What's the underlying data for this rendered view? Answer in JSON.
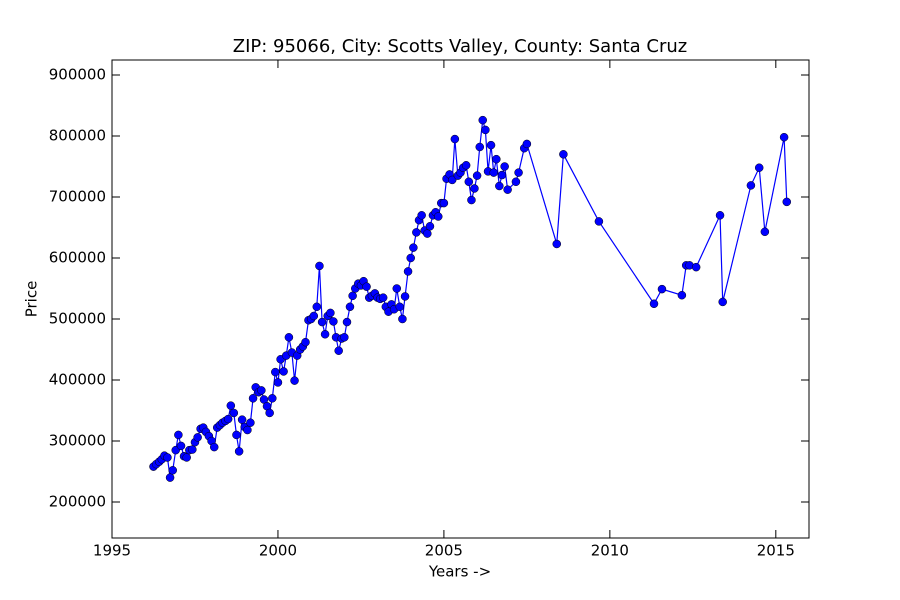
{
  "chart_data": {
    "type": "line",
    "title": "ZIP: 95066, City: Scotts Valley, County: Santa Cruz",
    "xlabel": "Years ->",
    "ylabel": "Price",
    "color": "#0000ff",
    "x": [
      1996.25,
      1996.33,
      1996.42,
      1996.5,
      1996.58,
      1996.67,
      1996.75,
      1996.83,
      1996.92,
      1997,
      1997.08,
      1997.17,
      1997.25,
      1997.33,
      1997.42,
      1997.5,
      1997.58,
      1997.67,
      1997.75,
      1997.83,
      1997.92,
      1998,
      1998.08,
      1998.17,
      1998.25,
      1998.33,
      1998.42,
      1998.5,
      1998.58,
      1998.67,
      1998.75,
      1998.83,
      1998.92,
      1999,
      1999.08,
      1999.17,
      1999.25,
      1999.33,
      1999.42,
      1999.5,
      1999.58,
      1999.67,
      1999.75,
      1999.83,
      1999.92,
      2000,
      2000.08,
      2000.17,
      2000.25,
      2000.33,
      2000.42,
      2000.5,
      2000.58,
      2000.67,
      2000.75,
      2000.83,
      2000.92,
      2001,
      2001.08,
      2001.17,
      2001.25,
      2001.33,
      2001.42,
      2001.5,
      2001.58,
      2001.67,
      2001.75,
      2001.83,
      2001.92,
      2002,
      2002.08,
      2002.17,
      2002.25,
      2002.33,
      2002.42,
      2002.5,
      2002.58,
      2002.67,
      2002.75,
      2002.83,
      2002.92,
      2003,
      2003.08,
      2003.17,
      2003.25,
      2003.33,
      2003.42,
      2003.5,
      2003.58,
      2003.67,
      2003.75,
      2003.83,
      2003.92,
      2004,
      2004.08,
      2004.17,
      2004.25,
      2004.33,
      2004.42,
      2004.5,
      2004.58,
      2004.67,
      2004.75,
      2004.83,
      2004.92,
      2005,
      2005.08,
      2005.17,
      2005.25,
      2005.33,
      2005.42,
      2005.5,
      2005.58,
      2005.67,
      2005.75,
      2005.83,
      2005.92,
      2006,
      2006.08,
      2006.17,
      2006.25,
      2006.33,
      2006.42,
      2006.5,
      2006.58,
      2006.67,
      2006.75,
      2006.83,
      2006.92,
      2007.17,
      2007.25,
      2007.42,
      2007.5,
      2008.4,
      2008.6,
      2009.67,
      2011.33,
      2011.57,
      2012.17,
      2012.3,
      2012.4,
      2012.6,
      2013.32,
      2013.4,
      2014.25,
      2014.5,
      2014.67,
      2015.25,
      2015.33
    ],
    "values": [
      258000,
      262000,
      266000,
      270000,
      276000,
      273000,
      240000,
      252000,
      285000,
      310000,
      292000,
      275000,
      273000,
      285000,
      286000,
      298000,
      306000,
      320000,
      322000,
      315000,
      308000,
      300000,
      290000,
      322000,
      326000,
      330000,
      333000,
      336000,
      358000,
      346000,
      310000,
      283000,
      335000,
      323000,
      318000,
      330000,
      370000,
      388000,
      380000,
      383000,
      368000,
      357000,
      346000,
      370000,
      413000,
      396000,
      434000,
      414000,
      440000,
      470000,
      445000,
      399000,
      440000,
      450000,
      455000,
      462000,
      498000,
      500000,
      505000,
      520000,
      587000,
      495000,
      475000,
      505000,
      510000,
      496000,
      470000,
      448000,
      468000,
      470000,
      495000,
      520000,
      538000,
      550000,
      558000,
      555000,
      562000,
      553000,
      535000,
      538000,
      542000,
      535000,
      533000,
      535000,
      520000,
      512000,
      524000,
      516000,
      550000,
      520000,
      500000,
      537000,
      578000,
      600000,
      617000,
      642000,
      662000,
      670000,
      645000,
      640000,
      652000,
      670000,
      675000,
      668000,
      690000,
      690000,
      730000,
      737000,
      728000,
      795000,
      735000,
      740000,
      748000,
      752000,
      725000,
      695000,
      714000,
      735000,
      782000,
      826000,
      810000,
      742000,
      785000,
      740000,
      762000,
      718000,
      736000,
      750000,
      712000,
      725000,
      740000,
      780000,
      787000,
      623000,
      770000,
      660000,
      525000,
      549000,
      539000,
      588000,
      588000,
      585000,
      670000,
      528000,
      719000,
      748000,
      643000,
      798000,
      692000
    ],
    "xlim": [
      1995,
      2016
    ],
    "xticks": [
      1995,
      2000,
      2005,
      2010,
      2015
    ],
    "ylim": [
      141000,
      924600
    ],
    "yticks": [
      200000,
      300000,
      400000,
      500000,
      600000,
      700000,
      800000,
      900000
    ]
  }
}
